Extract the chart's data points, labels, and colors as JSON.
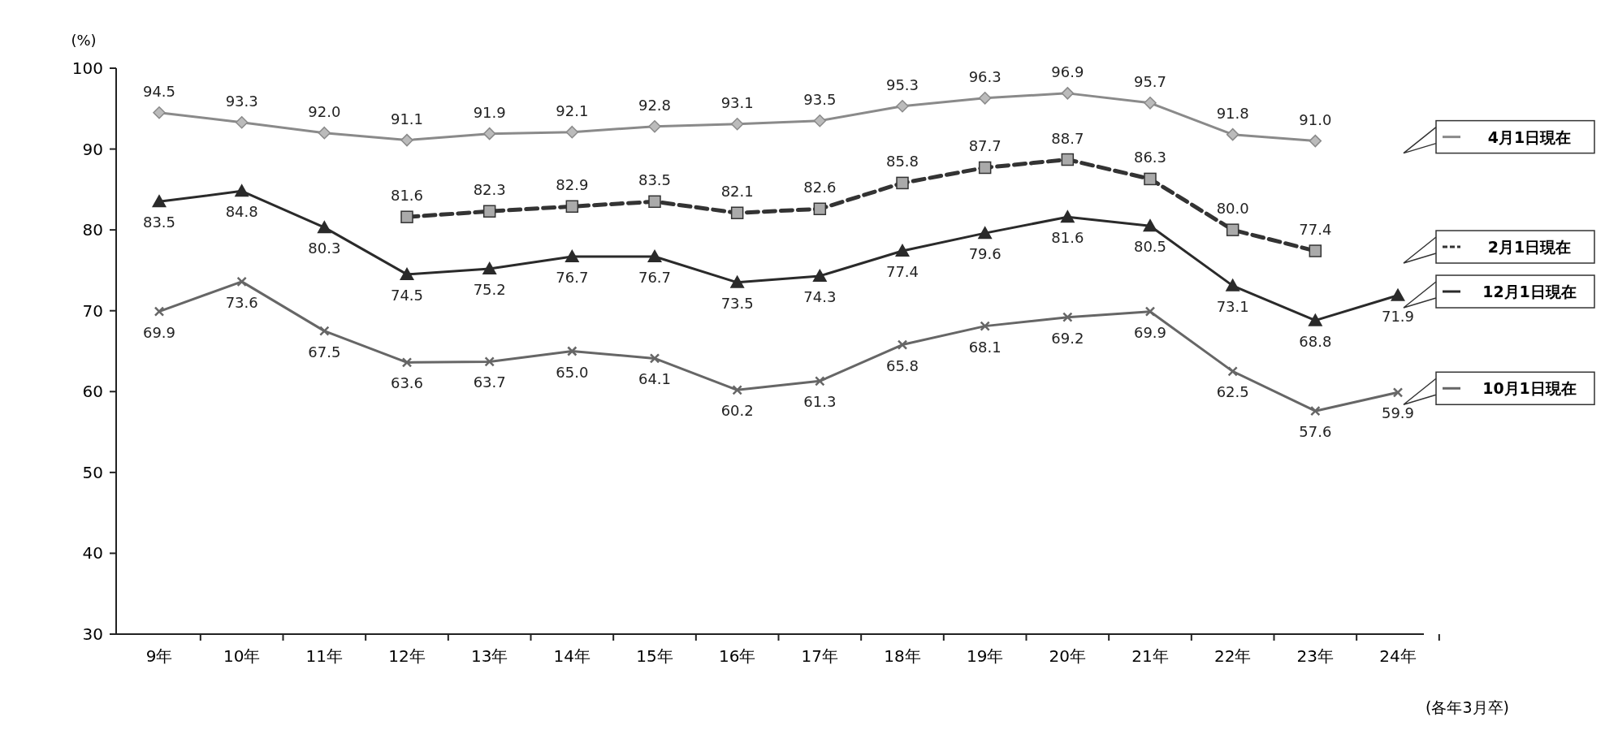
{
  "chart_data": {
    "type": "line",
    "ylabel": "(%)",
    "categories": [
      "9年",
      "10年",
      "11年",
      "12年",
      "13年",
      "14年",
      "15年",
      "16年",
      "17年",
      "18年",
      "19年",
      "20年",
      "21年",
      "22年",
      "23年",
      "24年"
    ],
    "ylim": [
      30,
      100
    ],
    "yticks": [
      30,
      40,
      50,
      60,
      70,
      80,
      90,
      100
    ],
    "grid": false,
    "legend": "right",
    "annotations": [
      "(各年3月卒)"
    ],
    "series": [
      {
        "name": "4月1日現在",
        "color": "#8a8a8a",
        "marker": "diamond",
        "line_style": "solid",
        "values": [
          94.5,
          93.3,
          92.0,
          91.1,
          91.9,
          92.1,
          92.8,
          93.1,
          93.5,
          95.3,
          96.3,
          96.9,
          95.7,
          91.8,
          91.0,
          null
        ],
        "value_labels": [
          "94.5",
          "93.3",
          "92.0",
          "91.1",
          "91.9",
          "92.1",
          "92.8",
          "93.1",
          "93.5",
          "95.3",
          "96.3",
          "96.9",
          "95.7",
          "91.8",
          "91.0",
          null
        ]
      },
      {
        "name": "2月1日現在",
        "color": "#333333",
        "marker": "square",
        "line_style": "dashed",
        "values": [
          null,
          null,
          null,
          81.6,
          82.3,
          82.9,
          83.5,
          82.1,
          82.6,
          85.8,
          87.7,
          88.7,
          86.3,
          80.0,
          77.4,
          null
        ],
        "value_labels": [
          null,
          null,
          null,
          "81.6",
          "82.3",
          "82.9",
          "83.5",
          "82.1",
          "82.6",
          "85.8",
          "87.7",
          "88.7",
          "86.3",
          "80.0",
          "77.4",
          null
        ]
      },
      {
        "name": "12月1日現在",
        "color": "#2a2a2a",
        "marker": "triangle",
        "line_style": "solid",
        "values": [
          83.5,
          84.8,
          80.3,
          74.5,
          75.2,
          76.7,
          76.7,
          73.5,
          74.3,
          77.4,
          79.6,
          81.6,
          80.5,
          73.1,
          68.8,
          71.9
        ],
        "value_labels": [
          "83.5",
          "84.8",
          "80.3",
          "74.5",
          "75.2",
          "76.7",
          "76.7",
          "73.5",
          "74.3",
          "77.4",
          "79.6",
          "81.6",
          "80.5",
          "73.1",
          "68.8",
          "71.9"
        ]
      },
      {
        "name": "10月1日現在",
        "color": "#666666",
        "marker": "cross",
        "line_style": "solid",
        "values": [
          69.9,
          73.6,
          67.5,
          63.6,
          63.7,
          65.0,
          64.1,
          60.2,
          61.3,
          65.8,
          68.1,
          69.2,
          69.9,
          62.5,
          57.6,
          59.9
        ],
        "value_labels": [
          "69.9",
          "73.6",
          "67.5",
          "63.6",
          "63.7",
          "65.0",
          "64.1",
          "60.2",
          "61.3",
          "65.8",
          "68.1",
          "69.2",
          "69.9",
          "62.5",
          "57.6",
          "59.9"
        ]
      }
    ]
  }
}
